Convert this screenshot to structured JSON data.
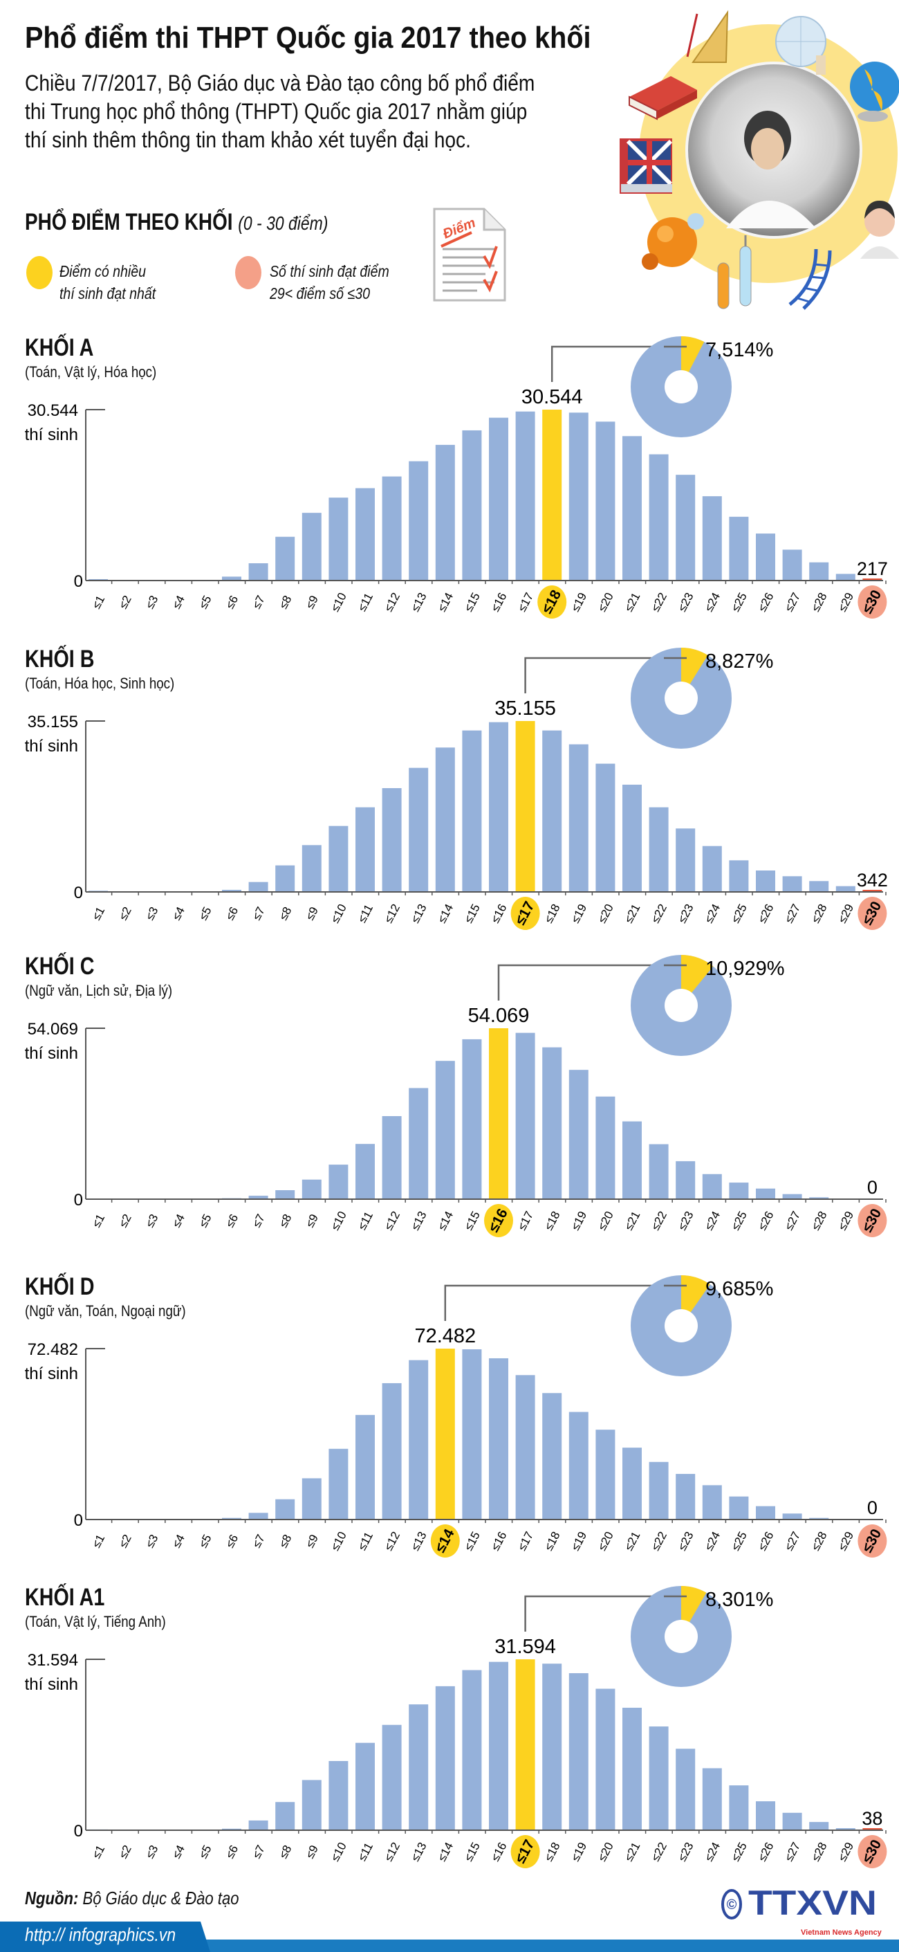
{
  "header": {
    "title": "Phổ điểm thi THPT Quốc gia 2017 theo khối",
    "intro_lines": [
      "Chiều 7/7/2017, Bộ Giáo dục và Đào tạo công bố phổ điểm",
      "thi Trung học phổ thông (THPT) Quốc gia 2017 nhằm giúp",
      "thí sinh thêm thông tin tham khảo xét tuyển đại học."
    ],
    "section_title": "PHỔ ĐIỂM THEO KHỐI",
    "section_range": "(0 - 30 điểm)",
    "doc_icon_text": "Điểm"
  },
  "legend": [
    {
      "line1": "Điểm có nhiều",
      "line2": "thí sinh đạt nhất",
      "color": "#fcd21f"
    },
    {
      "line1": "Số thí sinh đạt điểm",
      "line2": "29< điểm số ≤30",
      "color": "#f4a088"
    }
  ],
  "colors": {
    "bar": "#95b1da",
    "peak": "#fcd21f",
    "top_score": "#e8553a",
    "top_score_badge": "#f4a088",
    "axis": "#555555",
    "footer_blue": "#1a7cc1"
  },
  "chart_data": [
    {
      "type": "bar",
      "title": "KHỐI A",
      "subtitle": "(Toán, Vật lý, Hóa học)",
      "ylabel": "thí sinh",
      "ymax_label": "30.544",
      "ymin_label": "0",
      "ylim": [
        0,
        30544
      ],
      "categories": [
        "≤1",
        "≤2",
        "≤3",
        "≤4",
        "≤5",
        "≤6",
        "≤7",
        "≤8",
        "≤9",
        "≤10",
        "≤11",
        "≤12",
        "≤13",
        "≤14",
        "≤15",
        "≤16",
        "≤17",
        "≤18",
        "≤19",
        "≤20",
        "≤21",
        "≤22",
        "≤23",
        "≤24",
        "≤25",
        "≤26",
        "≤27",
        "≤28",
        "≤29",
        "≤30"
      ],
      "values": [
        250,
        0,
        0,
        0,
        60,
        700,
        3090,
        7820,
        12100,
        14820,
        16510,
        18600,
        21320,
        24250,
        26840,
        29100,
        30210,
        30544,
        30010,
        28400,
        25810,
        22560,
        18900,
        15070,
        11400,
        8400,
        5520,
        3250,
        1190,
        217
      ],
      "peak_category": "≤18",
      "peak_label": "30.544",
      "top_label": "217",
      "donut_percent": 7.514,
      "donut_label": "7,514%"
    },
    {
      "type": "bar",
      "title": "KHỐI B",
      "subtitle": "(Toán, Hóa học, Sinh học)",
      "ylabel": "thí sinh",
      "ymax_label": "35.155",
      "ymin_label": "0",
      "ylim": [
        0,
        35155
      ],
      "categories": [
        "≤1",
        "≤2",
        "≤3",
        "≤4",
        "≤5",
        "≤6",
        "≤7",
        "≤8",
        "≤9",
        "≤10",
        "≤11",
        "≤12",
        "≤13",
        "≤14",
        "≤15",
        "≤16",
        "≤17",
        "≤18",
        "≤19",
        "≤20",
        "≤21",
        "≤22",
        "≤23",
        "≤24",
        "≤25",
        "≤26",
        "≤27",
        "≤28",
        "≤29",
        "≤30"
      ],
      "values": [
        240,
        0,
        0,
        0,
        50,
        430,
        2040,
        5460,
        9630,
        13570,
        17410,
        21350,
        25520,
        29700,
        33210,
        34920,
        35155,
        33210,
        30360,
        26380,
        22060,
        17410,
        13050,
        9440,
        6500,
        4410,
        3230,
        2230,
        1190,
        342
      ],
      "peak_category": "≤17",
      "peak_label": "35.155",
      "top_label": "342",
      "donut_percent": 8.827,
      "donut_label": "8,827%"
    },
    {
      "type": "bar",
      "title": "KHỐI C",
      "subtitle": "(Ngữ văn, Lịch sử, Địa lý)",
      "ylabel": "thí sinh",
      "ymax_label": "54.069",
      "ymin_label": "0",
      "ylim": [
        0,
        54069
      ],
      "categories": [
        "≤1",
        "≤2",
        "≤3",
        "≤4",
        "≤5",
        "≤6",
        "≤7",
        "≤8",
        "≤9",
        "≤10",
        "≤11",
        "≤12",
        "≤13",
        "≤14",
        "≤15",
        "≤16",
        "≤17",
        "≤18",
        "≤19",
        "≤20",
        "≤21",
        "≤22",
        "≤23",
        "≤24",
        "≤25",
        "≤26",
        "≤27",
        "≤28",
        "≤29",
        "≤30"
      ],
      "values": [
        0,
        0,
        0,
        0,
        0,
        290,
        1090,
        2840,
        6190,
        10920,
        17470,
        26270,
        35150,
        43740,
        50580,
        54069,
        52610,
        48030,
        40900,
        32460,
        24600,
        17390,
        12010,
        7930,
        5240,
        3350,
        1600,
        580,
        70,
        0
      ],
      "peak_category": "≤16",
      "peak_label": "54.069",
      "top_label": "0",
      "donut_percent": 10.929,
      "donut_label": "10,929%"
    },
    {
      "type": "bar",
      "title": "KHỐI D",
      "subtitle": "(Ngữ văn, Toán, Ngoại ngữ)",
      "ylabel": "thí sinh",
      "ymax_label": "72.482",
      "ymin_label": "0",
      "ylim": [
        0,
        72482
      ],
      "categories": [
        "≤1",
        "≤2",
        "≤3",
        "≤4",
        "≤5",
        "≤6",
        "≤7",
        "≤8",
        "≤9",
        "≤10",
        "≤11",
        "≤12",
        "≤13",
        "≤14",
        "≤15",
        "≤16",
        "≤17",
        "≤18",
        "≤19",
        "≤20",
        "≤21",
        "≤22",
        "≤23",
        "≤24",
        "≤25",
        "≤26",
        "≤27",
        "≤28",
        "≤29",
        "≤30"
      ],
      "values": [
        0,
        0,
        0,
        0,
        0,
        680,
        2830,
        8600,
        17490,
        29990,
        44350,
        57830,
        67600,
        72482,
        72190,
        68380,
        61250,
        53630,
        45620,
        38100,
        30480,
        24420,
        19340,
        14560,
        9770,
        5670,
        2540,
        680,
        0,
        0
      ],
      "peak_category": "≤14",
      "peak_label": "72.482",
      "top_label": "0",
      "donut_percent": 9.685,
      "donut_label": "9,685%"
    },
    {
      "type": "bar",
      "title": "KHỐI A1",
      "subtitle": "(Toán, Vật lý, Tiếng Anh)",
      "ylabel": "thí sinh",
      "ymax_label": "31.594",
      "ymin_label": "0",
      "ylim": [
        0,
        31594
      ],
      "categories": [
        "≤1",
        "≤2",
        "≤3",
        "≤4",
        "≤5",
        "≤6",
        "≤7",
        "≤8",
        "≤9",
        "≤10",
        "≤11",
        "≤12",
        "≤13",
        "≤14",
        "≤15",
        "≤16",
        "≤17",
        "≤18",
        "≤19",
        "≤20",
        "≤21",
        "≤22",
        "≤23",
        "≤24",
        "≤25",
        "≤26",
        "≤27",
        "≤28",
        "≤29",
        "≤30"
      ],
      "values": [
        140,
        0,
        0,
        0,
        0,
        280,
        1800,
        5210,
        9280,
        12790,
        16150,
        19470,
        23260,
        26620,
        29600,
        31120,
        31594,
        30790,
        29030,
        26150,
        22640,
        19180,
        15060,
        11460,
        8290,
        5350,
        3220,
        1520,
        380,
        38
      ],
      "peak_category": "≤17",
      "peak_label": "31.594",
      "top_label": "38",
      "donut_percent": 8.301,
      "donut_label": "8,301%"
    }
  ],
  "footer": {
    "source_label": "Nguồn:",
    "source_value": "Bộ Giáo dục & Đào tạo",
    "url": "http:// infographics.vn",
    "logo_text": "TTXVN",
    "logo_sub": "Vietnam News Agency",
    "copyright": "©"
  }
}
